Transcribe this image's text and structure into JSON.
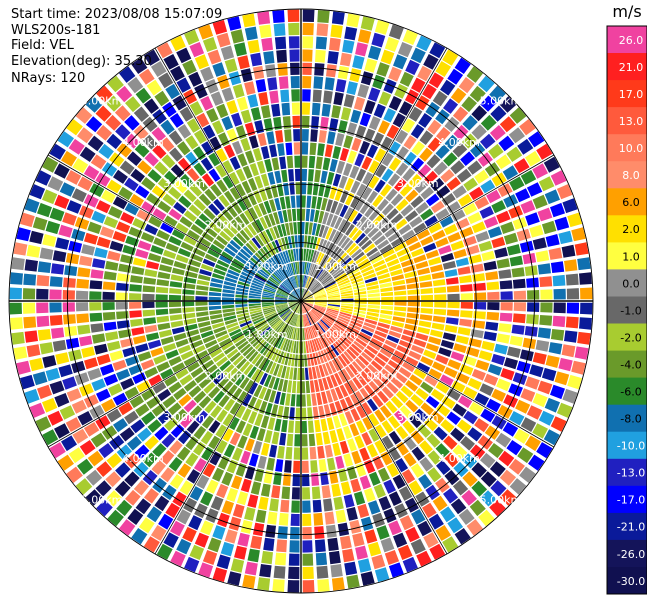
{
  "info": {
    "start_time": "Start time: 2023/08/08 15:07:09",
    "site": "WLS200s-181",
    "field": "Field: VEL",
    "elevation": "Elevation(deg): 35.30",
    "nrays": "NRays: 120"
  },
  "chart_data": {
    "type": "heatmap",
    "projection": "polar",
    "field": "VEL",
    "rays": 120,
    "grid": true,
    "range_ring_labels": [
      "1.00km",
      "2.00km",
      "3.00km",
      "4.00km",
      "5.00km"
    ],
    "colorbar": {
      "unit": "m/s",
      "ticks": [
        "26.0",
        "21.0",
        "17.0",
        "13.0",
        "10.0",
        "8.0",
        "6.0",
        "2.0",
        "1.0",
        "0.0",
        "-1.0",
        "-2.0",
        "-4.0",
        "-6.0",
        "-8.0",
        "-10.0",
        "-13.0",
        "-17.0",
        "-21.0",
        "-26.0",
        "-30.0"
      ],
      "colors": [
        "#f042a0",
        "#ff2020",
        "#ff3a1a",
        "#ff5a3c",
        "#ff7a5a",
        "#ff8c6a",
        "#ffa000",
        "#ffe000",
        "#ffff40",
        "#909090",
        "#686868",
        "#a8cc30",
        "#6a9a2a",
        "#2a8a2a",
        "#1070b0",
        "#20a0e0",
        "#2020c0",
        "#0000ff",
        "#0a1a9a",
        "#14145a",
        "#101050"
      ]
    }
  }
}
